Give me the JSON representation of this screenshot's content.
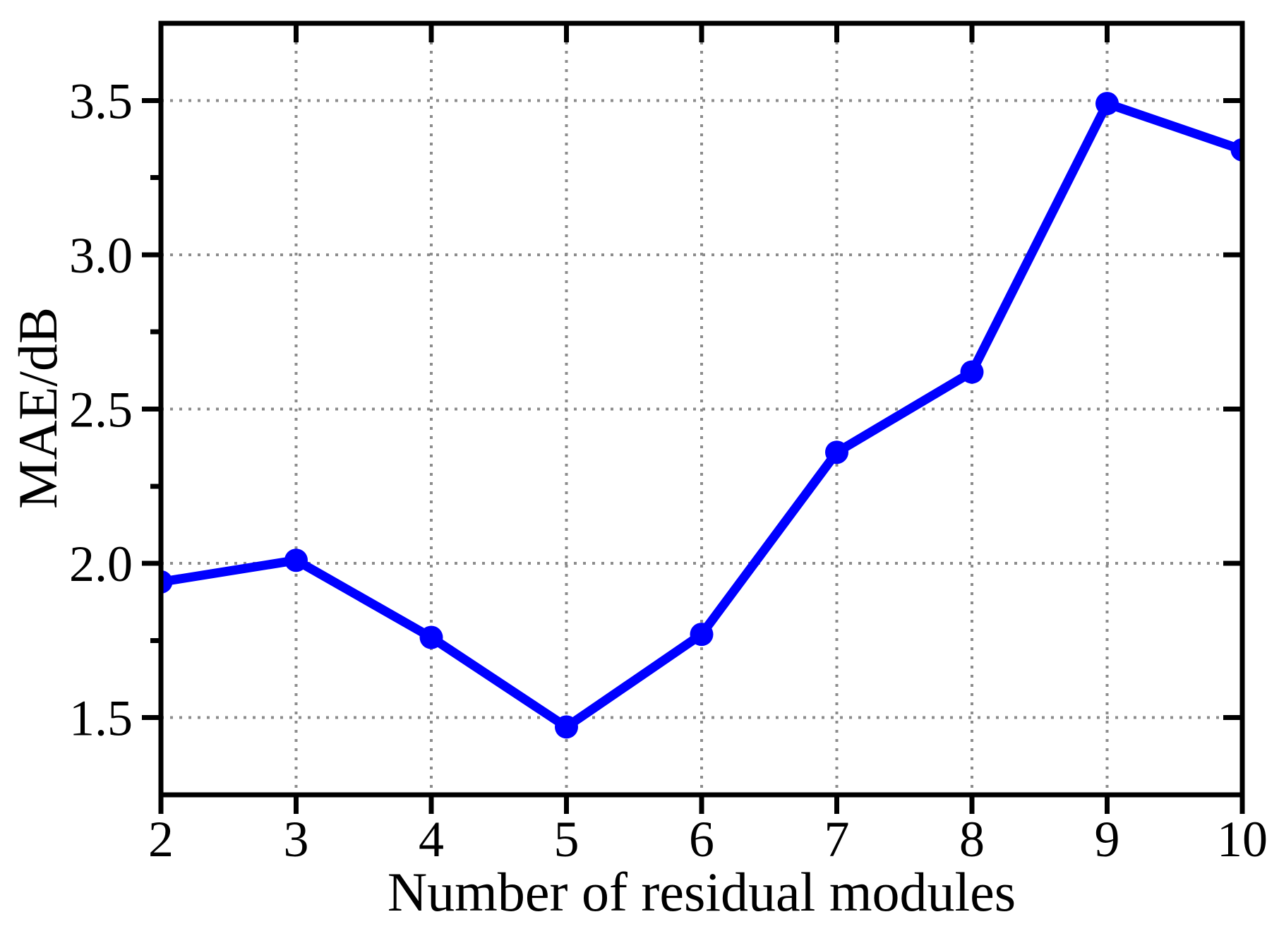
{
  "chart_data": {
    "type": "line",
    "title": "",
    "xlabel": "Number of residual modules",
    "ylabel": "MAE/dB",
    "x": [
      2,
      3,
      4,
      5,
      6,
      7,
      8,
      9,
      10
    ],
    "series": [
      {
        "name": "MAE",
        "values": [
          1.94,
          2.01,
          1.76,
          1.47,
          1.77,
          2.36,
          2.62,
          3.49,
          3.34
        ]
      }
    ],
    "xlim": [
      2,
      10
    ],
    "ylim": [
      1.25,
      3.75
    ],
    "x_major_ticks": [
      2,
      3,
      4,
      5,
      6,
      7,
      8,
      9,
      10
    ],
    "x_tick_labels": [
      "2",
      "3",
      "4",
      "5",
      "6",
      "7",
      "8",
      "9",
      "10"
    ],
    "y_major_ticks": [
      1.5,
      2.0,
      2.5,
      3.0,
      3.5
    ],
    "y_tick_labels": [
      "1.5",
      "2.0",
      "2.5",
      "3.0",
      "3.5"
    ],
    "y_minor_ticks": [
      1.75,
      2.25,
      2.75,
      3.25
    ],
    "grid": "dotted",
    "legend": "none",
    "line_color": "#0000FF",
    "marker": "circle",
    "marker_color": "#0000FF",
    "grid_color": "#8C8C8C",
    "axis_color": "#000000",
    "background": "#FFFFFF"
  }
}
